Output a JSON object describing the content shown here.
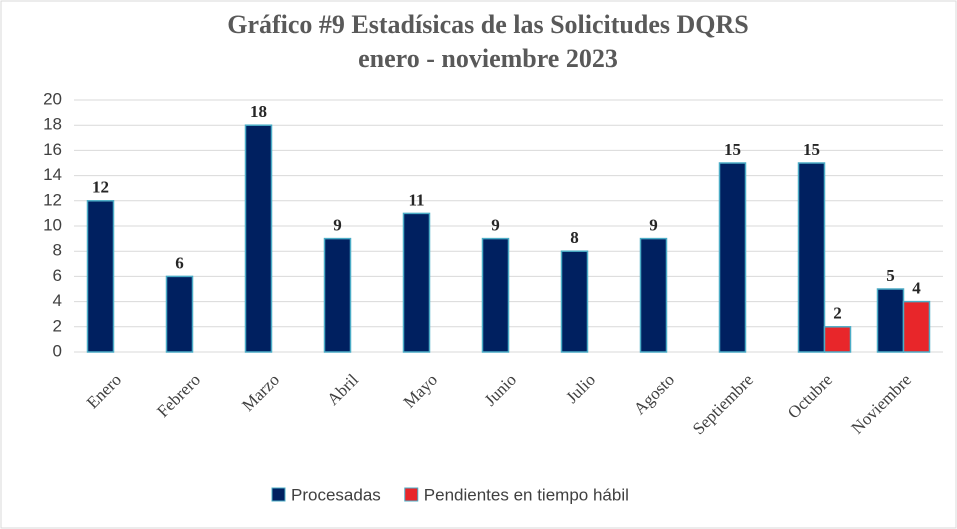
{
  "chart_data": {
    "type": "bar",
    "title": "Gráfico #9 Estadísicas de las Solicitudes DQRS",
    "subtitle": "enero - noviembre 2023",
    "categories": [
      "Enero",
      "Febrero",
      "Marzo",
      "Abril",
      "Mayo",
      "Junio",
      "Julio",
      "Agosto",
      "Septiembre",
      "Octubre",
      "Noviembre"
    ],
    "series": [
      {
        "name": "Procesadas",
        "color": "#002060",
        "values": [
          12,
          6,
          18,
          9,
          11,
          9,
          8,
          9,
          15,
          15,
          5
        ]
      },
      {
        "name": "Pendientes en tiempo hábil",
        "color": "#e8262a",
        "values": [
          0,
          0,
          0,
          0,
          0,
          0,
          0,
          0,
          0,
          2,
          4
        ]
      }
    ],
    "ylim": [
      0,
      20
    ],
    "yticks": [
      0,
      2,
      4,
      6,
      8,
      10,
      12,
      14,
      16,
      18,
      20
    ],
    "grid": true,
    "legend": "bottom"
  }
}
